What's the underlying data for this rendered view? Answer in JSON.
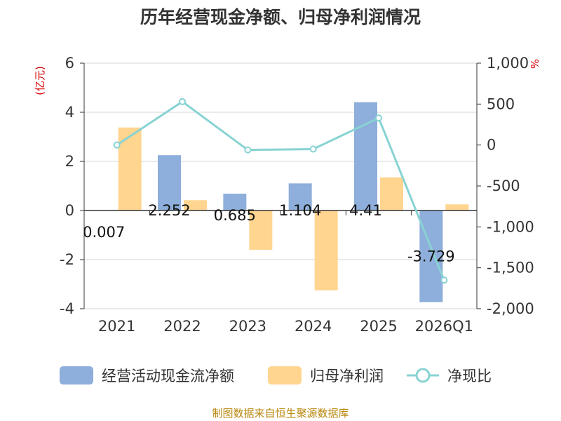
{
  "chart_data": {
    "type": "bar",
    "title": "历年经营现金净额、归母净利润情况",
    "categories": [
      "2021",
      "2022",
      "2023",
      "2024",
      "2025",
      "2026Q1"
    ],
    "series": [
      {
        "name": "经营活动现金流净额",
        "type": "bar",
        "axis": "left",
        "color": "#8eaedb",
        "values": [
          0.007,
          2.252,
          0.685,
          1.104,
          4.41,
          -3.729
        ]
      },
      {
        "name": "归母净利润",
        "type": "bar",
        "axis": "left",
        "color": "#ffd590",
        "values": [
          3.38,
          0.42,
          -1.6,
          -3.25,
          1.35,
          0.25
        ]
      },
      {
        "name": "净现比",
        "type": "line",
        "axis": "right",
        "color": "#88d3d3",
        "values": [
          0,
          530,
          -60,
          -50,
          330,
          -1650
        ]
      }
    ],
    "data_labels": [
      "0.007",
      "2.252",
      "0.685",
      "1.104",
      "4.41",
      "-3.729"
    ],
    "y_left": {
      "unit": "(亿元)",
      "ylim": [
        -4,
        6
      ],
      "ticks": [
        "-4",
        "-2",
        "0",
        "2",
        "4",
        "6"
      ]
    },
    "y_right": {
      "unit": "%",
      "ylim": [
        -2000,
        1000
      ],
      "ticks": [
        "-2,000",
        "-1,500",
        "-1,000",
        "-500",
        "0",
        "500",
        "1,000"
      ]
    },
    "grid": true,
    "legend": "bottom"
  },
  "source": "制图数据来自恒生聚源数据库"
}
